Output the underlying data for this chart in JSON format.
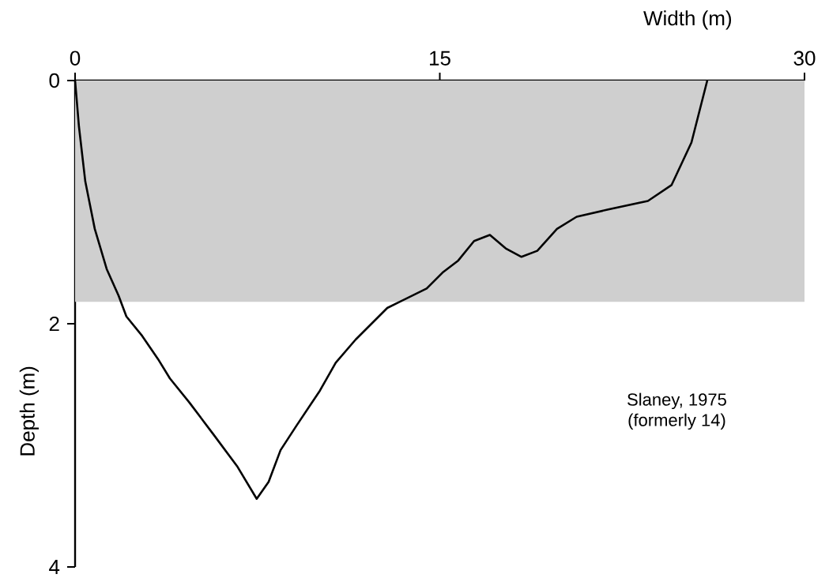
{
  "chart_data": {
    "type": "line",
    "xlabel": "Width (m)",
    "ylabel": "Depth (m)",
    "x": [
      0,
      0.16,
      0.42,
      0.81,
      1.3,
      1.79,
      2.11,
      2.76,
      3.41,
      3.9,
      4.71,
      5.69,
      6.66,
      7.47,
      7.96,
      8.45,
      9.1,
      10.07,
      10.72,
      11.54,
      12.84,
      13.65,
      14.46,
      15.11,
      15.76,
      16.41,
      17.06,
      17.71,
      18.36,
      19.01,
      19.82,
      20.63,
      21.93,
      23.56,
      24.53,
      25.35,
      26.0
    ],
    "series": [
      {
        "color": "#000000",
        "values": [
          0,
          0.38,
          0.83,
          1.22,
          1.55,
          1.77,
          1.94,
          2.1,
          2.29,
          2.45,
          2.65,
          2.91,
          3.17,
          3.44,
          3.3,
          3.04,
          2.84,
          2.55,
          2.32,
          2.13,
          1.87,
          1.79,
          1.71,
          1.58,
          1.48,
          1.32,
          1.27,
          1.38,
          1.45,
          1.4,
          1.22,
          1.12,
          1.06,
          0.99,
          0.86,
          0.51,
          0.0
        ]
      }
    ],
    "xlim": [
      0,
      30
    ],
    "xticks": [
      0,
      15,
      30
    ],
    "ylim": [
      4,
      0
    ],
    "yticks": [
      0,
      2,
      4
    ],
    "bands": [
      {
        "axis": "y",
        "from": 0,
        "to": 1.82,
        "color": "#cfcfcf"
      }
    ],
    "annotations": [
      "Slaney, 1975",
      "(formerly 14)"
    ],
    "grid": false,
    "marker": "none",
    "line_style": "solid"
  }
}
